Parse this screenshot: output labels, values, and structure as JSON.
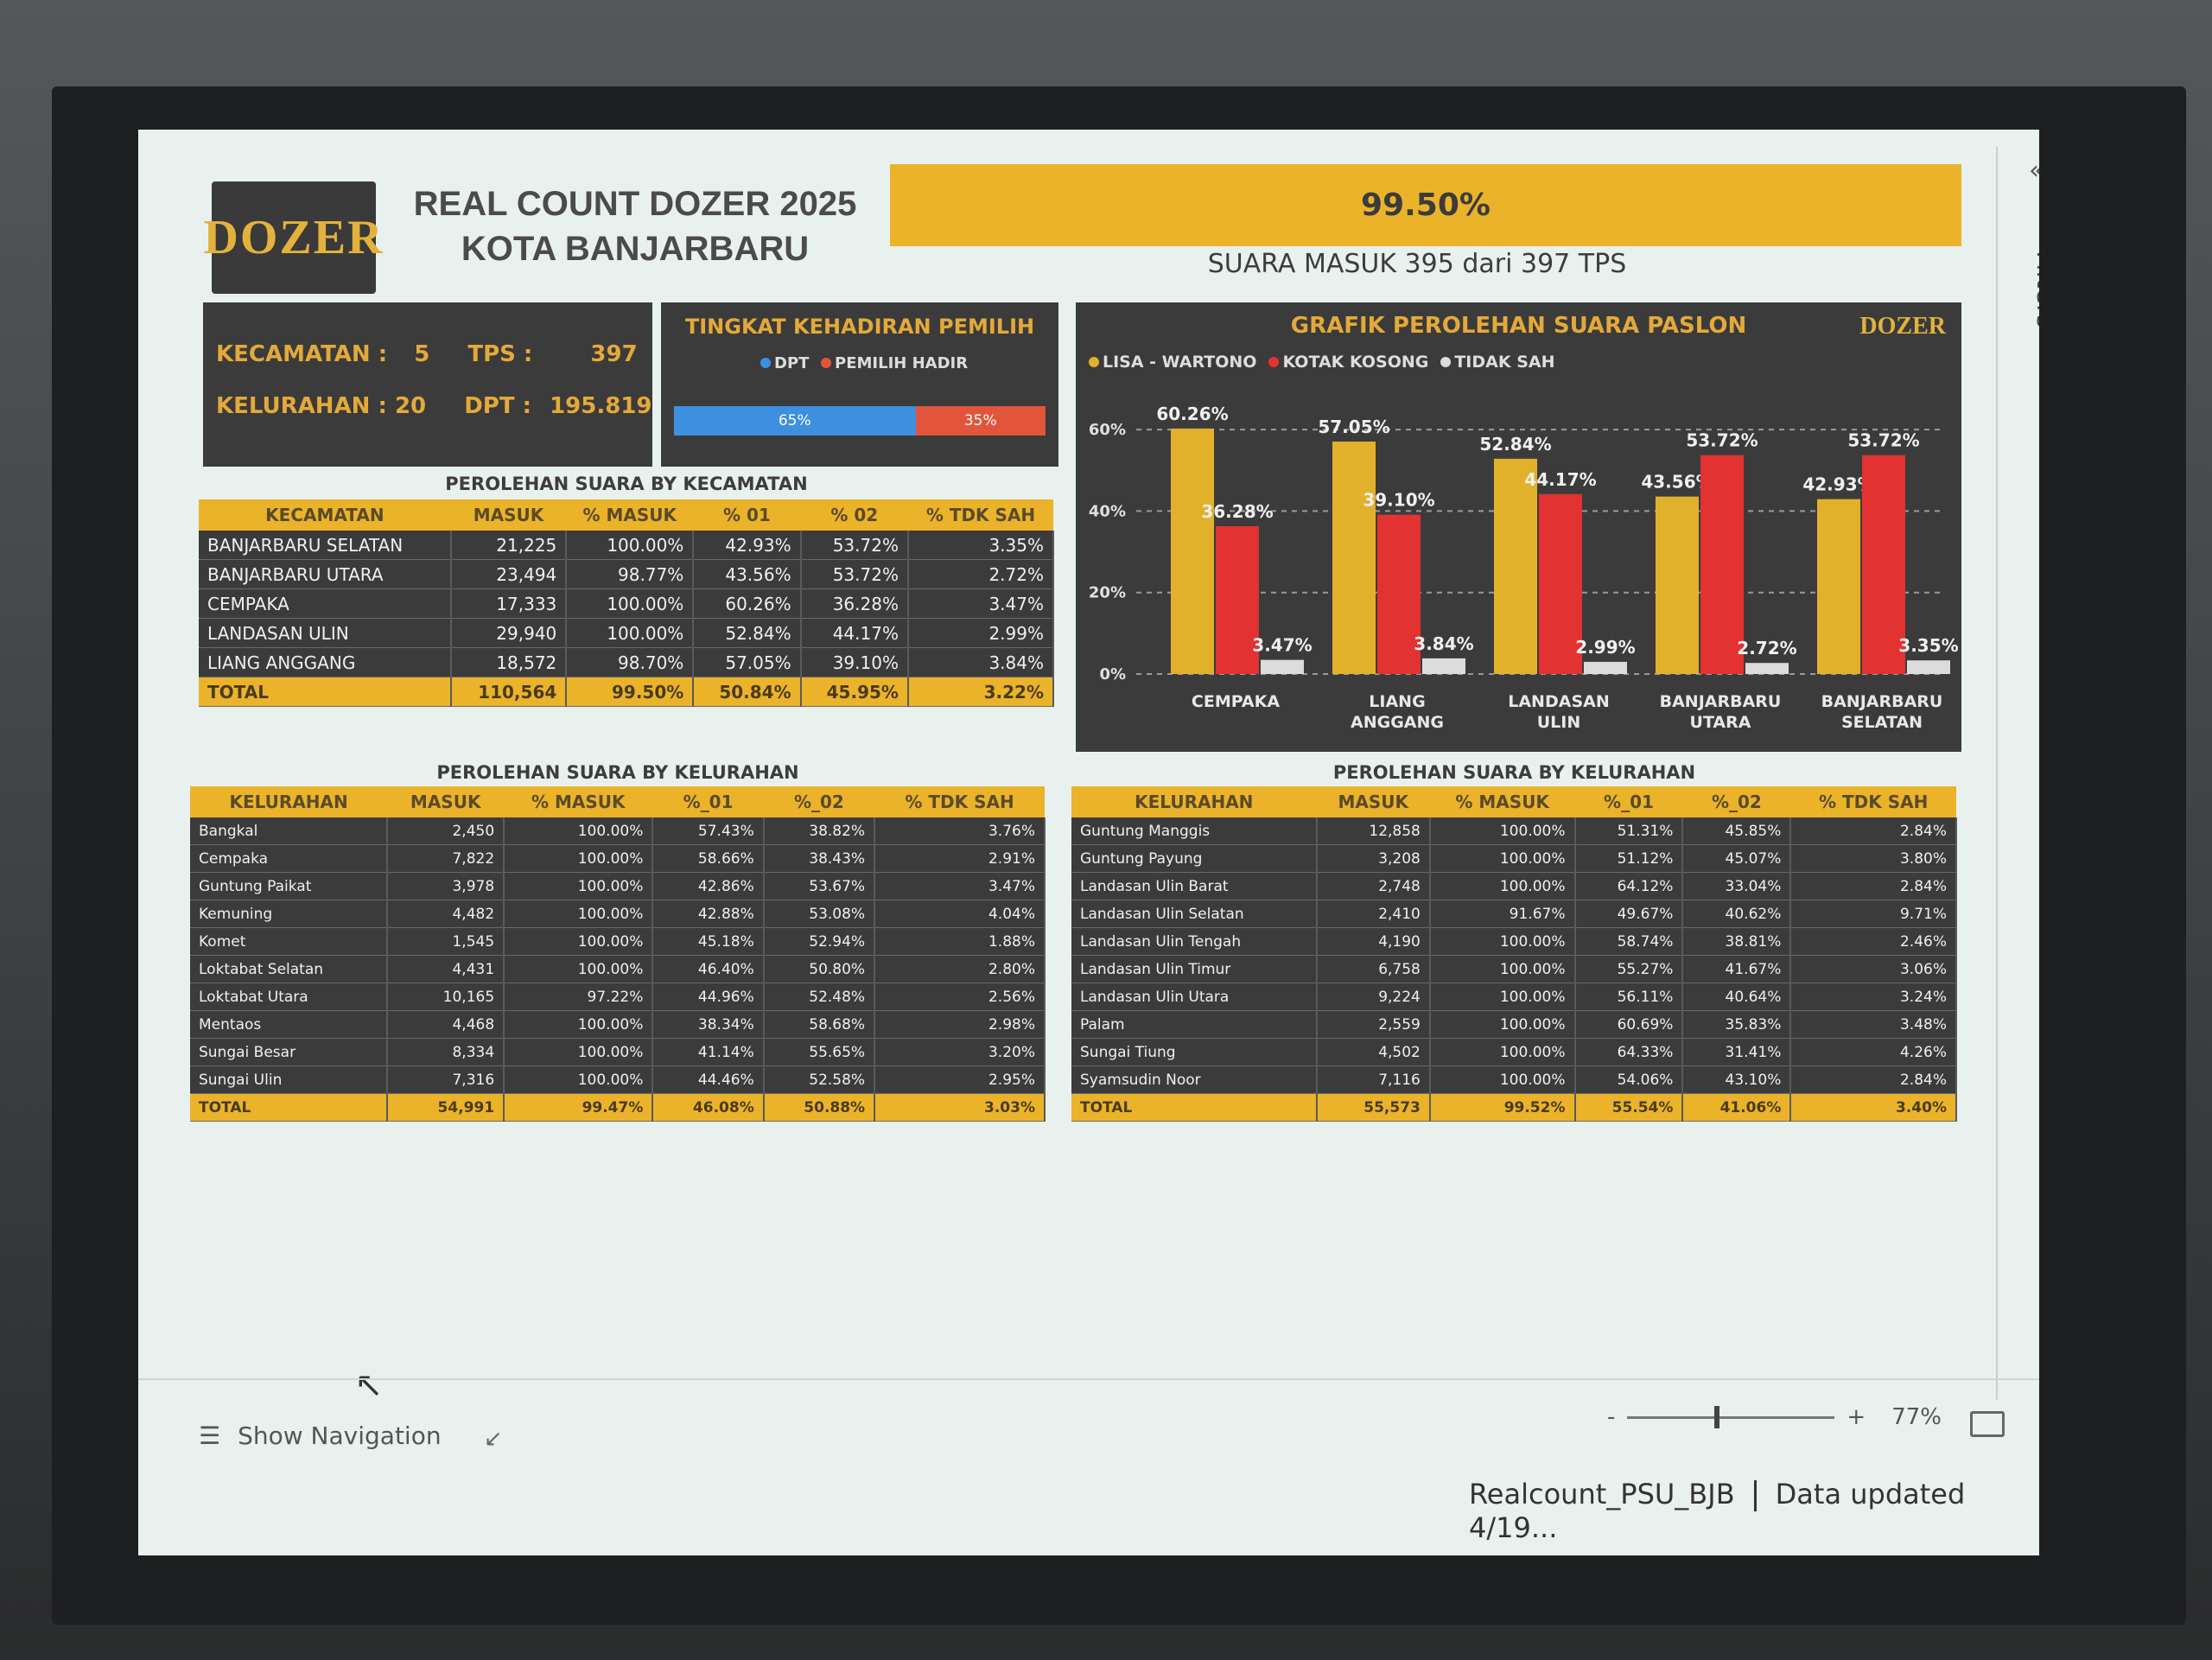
{
  "header": {
    "logo": "DOZER",
    "title_line1": "REAL COUNT DOZER 2025",
    "title_line2": "KOTA BANJARBARU",
    "progress_label": "99.50%",
    "suara_masuk": "SUARA MASUK 395 dari 397 TPS"
  },
  "info": {
    "kecamatan_label": "KECAMATAN :",
    "kecamatan_value": "5",
    "tps_label": "TPS :",
    "tps_value": "397",
    "kelurahan_label": "KELURAHAN : 20",
    "dpt_label": "DPT :",
    "dpt_value": "195.819"
  },
  "attendance": {
    "title": "TINGKAT KEHADIRAN PEMILIH",
    "legend_dpt": "DPT",
    "legend_hadir": "PEMILIH HADIR",
    "dpt_pct_label": "65%",
    "hadir_pct_label": "35%",
    "dpt_share": 0.65,
    "hadir_share": 0.35,
    "colors": {
      "dpt": "#3d8fe0",
      "hadir": "#e2553a"
    }
  },
  "chart": {
    "title": "GRAFIK PEROLEHAN SUARA PASLON",
    "logo": "DOZER"
  },
  "chart_data": {
    "type": "bar",
    "categories": [
      "CEMPAKA",
      "LIANG ANGGANG",
      "LANDASAN ULIN",
      "BANJARBARU UTARA",
      "BANJARBARU SELATAN"
    ],
    "series": [
      {
        "name": "LISA - WARTONO",
        "color": "#e2b12c",
        "values": [
          60.26,
          57.05,
          52.84,
          43.56,
          42.93
        ]
      },
      {
        "name": "KOTAK KOSONG",
        "color": "#e23232",
        "values": [
          36.28,
          39.1,
          44.17,
          53.72,
          53.72
        ]
      },
      {
        "name": "TIDAK SAH",
        "color": "#dcdcdc",
        "values": [
          3.47,
          3.84,
          2.99,
          2.72,
          3.35
        ]
      }
    ],
    "value_labels": [
      [
        "60.26%",
        "57.05%",
        "52.84%",
        "43.56%",
        "42.93%"
      ],
      [
        "36.28%",
        "39.10%",
        "44.17%",
        "53.72%",
        "53.72%"
      ],
      [
        "3.47%",
        "3.84%",
        "2.99%",
        "2.72%",
        "3.35%"
      ]
    ],
    "yticks": [
      "0%",
      "20%",
      "40%",
      "60%"
    ],
    "ylim": [
      0,
      70
    ]
  },
  "kecamatan_table": {
    "title": "PEROLEHAN SUARA BY KECAMATAN",
    "headers": [
      "KECAMATAN",
      "MASUK",
      "% MASUK",
      "% 01",
      "% 02",
      "% TDK SAH"
    ],
    "rows": [
      [
        "BANJARBARU SELATAN",
        "21,225",
        "100.00%",
        "42.93%",
        "53.72%",
        "3.35%"
      ],
      [
        "BANJARBARU UTARA",
        "23,494",
        "98.77%",
        "43.56%",
        "53.72%",
        "2.72%"
      ],
      [
        "CEMPAKA",
        "17,333",
        "100.00%",
        "60.26%",
        "36.28%",
        "3.47%"
      ],
      [
        "LANDASAN ULIN",
        "29,940",
        "100.00%",
        "52.84%",
        "44.17%",
        "2.99%"
      ],
      [
        "LIANG ANGGANG",
        "18,572",
        "98.70%",
        "57.05%",
        "39.10%",
        "3.84%"
      ]
    ],
    "total": [
      "TOTAL",
      "110,564",
      "99.50%",
      "50.84%",
      "45.95%",
      "3.22%"
    ]
  },
  "kelurahan_table_left": {
    "title": "PEROLEHAN SUARA BY KELURAHAN",
    "headers": [
      "KELURAHAN",
      "MASUK",
      "% MASUK",
      "%_01",
      "%_02",
      "% TDK SAH"
    ],
    "rows": [
      [
        "Bangkal",
        "2,450",
        "100.00%",
        "57.43%",
        "38.82%",
        "3.76%"
      ],
      [
        "Cempaka",
        "7,822",
        "100.00%",
        "58.66%",
        "38.43%",
        "2.91%"
      ],
      [
        "Guntung Paikat",
        "3,978",
        "100.00%",
        "42.86%",
        "53.67%",
        "3.47%"
      ],
      [
        "Kemuning",
        "4,482",
        "100.00%",
        "42.88%",
        "53.08%",
        "4.04%"
      ],
      [
        "Komet",
        "1,545",
        "100.00%",
        "45.18%",
        "52.94%",
        "1.88%"
      ],
      [
        "Loktabat Selatan",
        "4,431",
        "100.00%",
        "46.40%",
        "50.80%",
        "2.80%"
      ],
      [
        "Loktabat Utara",
        "10,165",
        "97.22%",
        "44.96%",
        "52.48%",
        "2.56%"
      ],
      [
        "Mentaos",
        "4,468",
        "100.00%",
        "38.34%",
        "58.68%",
        "2.98%"
      ],
      [
        "Sungai Besar",
        "8,334",
        "100.00%",
        "41.14%",
        "55.65%",
        "3.20%"
      ],
      [
        "Sungai Ulin",
        "7,316",
        "100.00%",
        "44.46%",
        "52.58%",
        "2.95%"
      ]
    ],
    "total": [
      "TOTAL",
      "54,991",
      "99.47%",
      "46.08%",
      "50.88%",
      "3.03%"
    ]
  },
  "kelurahan_table_right": {
    "title": "PEROLEHAN SUARA BY KELURAHAN",
    "headers": [
      "KELURAHAN",
      "MASUK",
      "% MASUK",
      "%_01",
      "%_02",
      "% TDK SAH"
    ],
    "rows": [
      [
        "Guntung Manggis",
        "12,858",
        "100.00%",
        "51.31%",
        "45.85%",
        "2.84%"
      ],
      [
        "Guntung Payung",
        "3,208",
        "100.00%",
        "51.12%",
        "45.07%",
        "3.80%"
      ],
      [
        "Landasan Ulin Barat",
        "2,748",
        "100.00%",
        "64.12%",
        "33.04%",
        "2.84%"
      ],
      [
        "Landasan Ulin Selatan",
        "2,410",
        "91.67%",
        "49.67%",
        "40.62%",
        "9.71%"
      ],
      [
        "Landasan Ulin Tengah",
        "4,190",
        "100.00%",
        "58.74%",
        "38.81%",
        "2.46%"
      ],
      [
        "Landasan Ulin Timur",
        "6,758",
        "100.00%",
        "55.27%",
        "41.67%",
        "3.06%"
      ],
      [
        "Landasan Ulin Utara",
        "9,224",
        "100.00%",
        "56.11%",
        "40.64%",
        "3.24%"
      ],
      [
        "Palam",
        "2,559",
        "100.00%",
        "60.69%",
        "35.83%",
        "3.48%"
      ],
      [
        "Sungai Tiung",
        "4,502",
        "100.00%",
        "64.33%",
        "31.41%",
        "4.26%"
      ],
      [
        "Syamsudin Noor",
        "7,116",
        "100.00%",
        "54.06%",
        "43.10%",
        "2.84%"
      ]
    ],
    "total": [
      "TOTAL",
      "55,573",
      "99.52%",
      "55.54%",
      "41.06%",
      "3.40%"
    ]
  },
  "footer": {
    "show_navigation": "Show Navigation",
    "zoom_minus": "-",
    "zoom_plus": "+",
    "zoom_level": "77%",
    "zoom_fraction": 0.42,
    "report_name": "Realcount_PSU_BJB",
    "data_updated": "Data updated 4/19..."
  },
  "filters": {
    "label": "Filters"
  }
}
